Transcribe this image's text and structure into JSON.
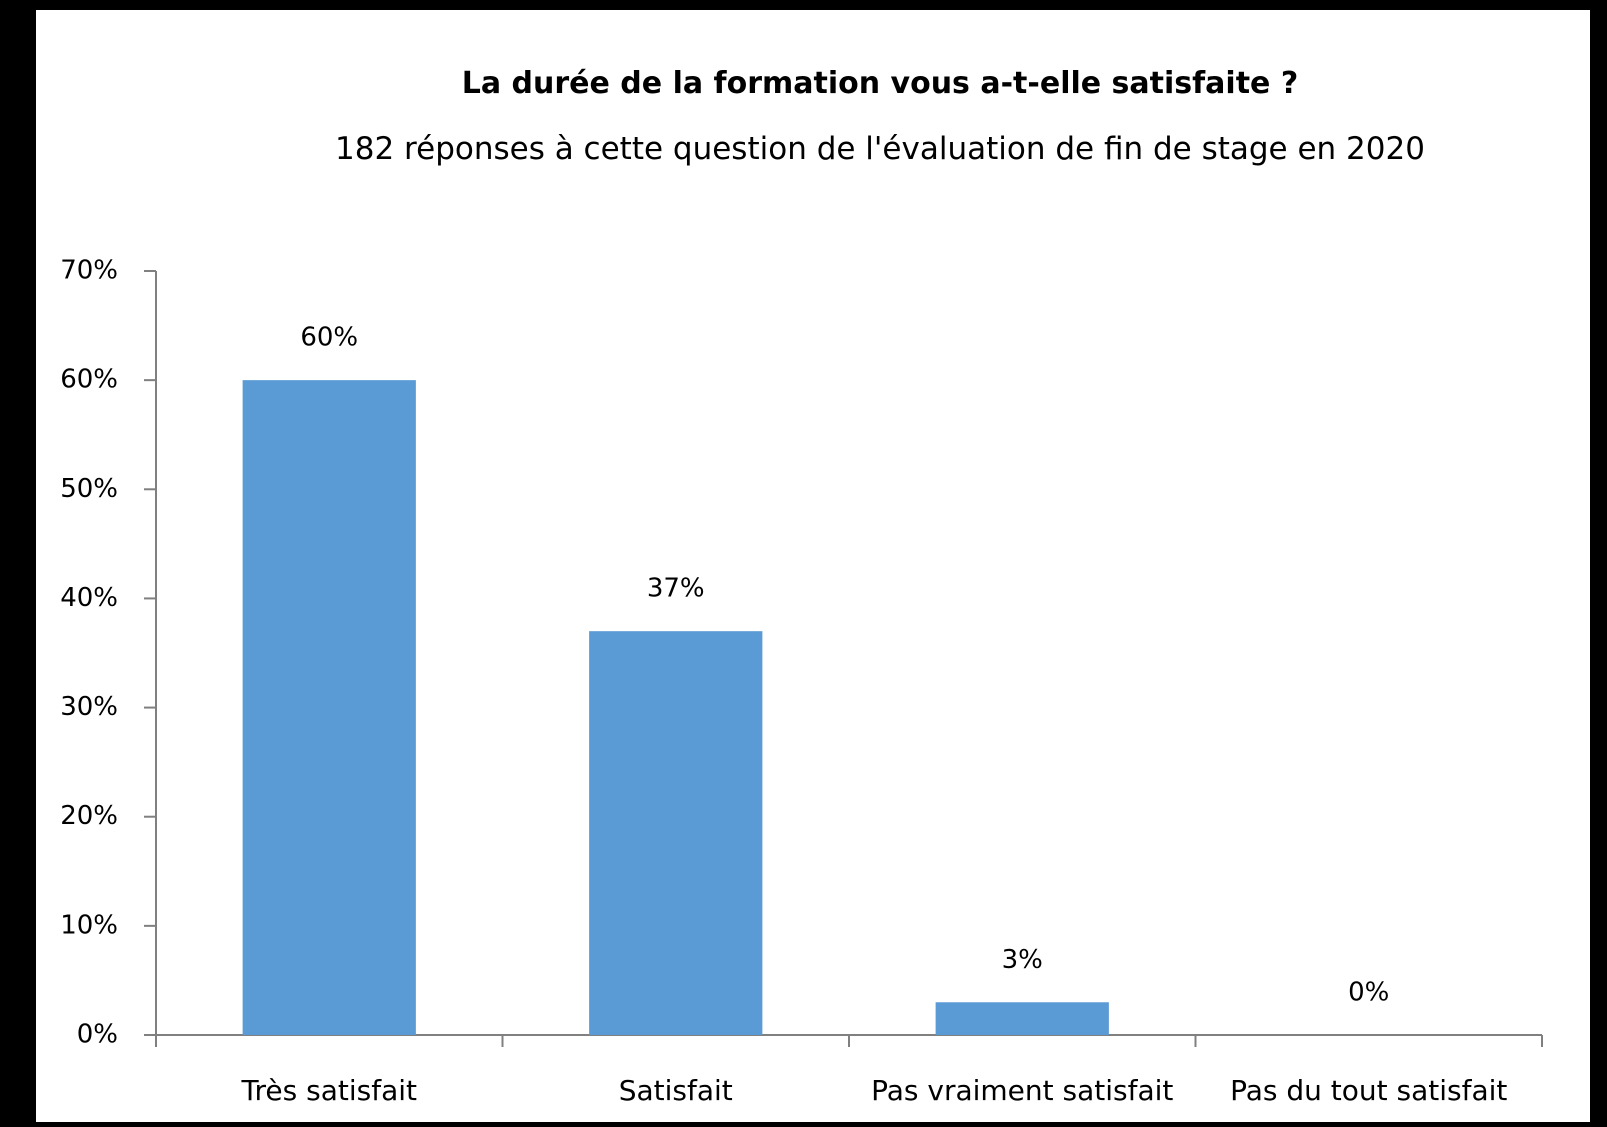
{
  "chart_data": {
    "type": "bar",
    "title": "La durée de la formation vous a-t-elle satisfaite ?",
    "subtitle": "182 réponses à cette question de l'évaluation de fin de stage en 2020",
    "categories": [
      "Très satisfait",
      "Satisfait",
      "Pas vraiment satisfait",
      "Pas du tout satisfait"
    ],
    "values": [
      60,
      37,
      3,
      0
    ],
    "value_labels": [
      "60%",
      "37%",
      "3%",
      "0%"
    ],
    "color": "#5b9bd5",
    "ylim": [
      0,
      70
    ],
    "yticks": [
      {
        "value": 0,
        "label": "0%"
      },
      {
        "value": 10,
        "label": "10%"
      },
      {
        "value": 20,
        "label": "20%"
      },
      {
        "value": 30,
        "label": "30%"
      },
      {
        "value": 40,
        "label": "40%"
      },
      {
        "value": 50,
        "label": "50%"
      },
      {
        "value": 60,
        "label": "60%"
      },
      {
        "value": 70,
        "label": "70%"
      }
    ],
    "grid": false
  }
}
